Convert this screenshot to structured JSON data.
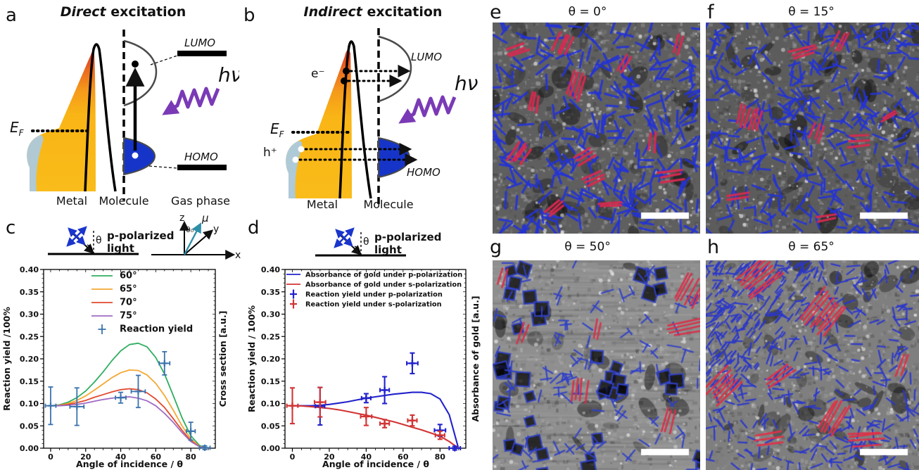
{
  "panels": {
    "a": {
      "letter": "a",
      "title_em": "Direct",
      "title_rest": " excitation",
      "ef": "E",
      "ef_sub": "F",
      "lumo": "LUMO",
      "homo": "HOMO",
      "photon": "hν",
      "metal": "Metal",
      "molecule": "Molecule",
      "gas_phase": "Gas phase"
    },
    "b": {
      "letter": "b",
      "title_em": "Indirect",
      "title_rest": " excitation",
      "electron": "e⁻",
      "hole": "h⁺",
      "ef": "E",
      "ef_sub": "F",
      "lumo": "LUMO",
      "homo": "HOMO",
      "photon": "hν",
      "metal": "Metal",
      "molecule": "Molecule"
    },
    "c": {
      "letter": "c",
      "pol_line1": "p-polarized",
      "pol_line2": "light",
      "theta": "θ",
      "axis_x": "x",
      "axis_y": "y",
      "axis_z": "z",
      "theta0": "θ₀",
      "mu": "μ"
    },
    "d": {
      "letter": "d",
      "pol_line1": "p-polarized",
      "pol_line2": "light",
      "theta": "θ"
    },
    "e": {
      "letter": "e",
      "title": "θ = 0°"
    },
    "f": {
      "letter": "f",
      "title": "θ = 15°"
    },
    "g": {
      "letter": "g",
      "title": "θ = 50°"
    },
    "h": {
      "letter": "h",
      "title": "θ = 65°"
    }
  },
  "colors": {
    "photon_purple": "#7a3ab6",
    "polarization_blue": "#1a35cc",
    "mu_teal": "#2e8fa8",
    "metal_yellow": "#f9b515",
    "metal_red": "#d93025",
    "metal_blue": "#a8cbe8",
    "homo_blue": "#1635c8",
    "scalebar": "#ffffff"
  },
  "chart_data": [
    {
      "id": "c",
      "type": "line+scatter",
      "title": "",
      "xlabel": "Angle of incidence / θ",
      "ylabel": "Reaction yield /100%",
      "ylabel_right": "Cross section [a.u.]",
      "xlim": [
        -4,
        94
      ],
      "ylim": [
        0,
        0.4
      ],
      "grid": false,
      "legend_position": "upper-center",
      "xticks": [
        0,
        20,
        40,
        60,
        80
      ],
      "yticks": [
        0.0,
        0.05,
        0.1,
        0.15,
        0.2,
        0.25,
        0.3,
        0.35,
        0.4
      ],
      "x": [
        0,
        5,
        10,
        15,
        20,
        25,
        30,
        35,
        40,
        45,
        50,
        55,
        60,
        65,
        70,
        75,
        80,
        85,
        90
      ],
      "series": [
        {
          "name": "60°",
          "color": "#2fae60",
          "values": [
            0.095,
            0.097,
            0.103,
            0.113,
            0.128,
            0.148,
            0.171,
            0.196,
            0.218,
            0.232,
            0.235,
            0.227,
            0.203,
            0.166,
            0.118,
            0.068,
            0.028,
            0.006,
            0.0
          ]
        },
        {
          "name": "65°",
          "color": "#f5a733",
          "values": [
            0.095,
            0.096,
            0.1,
            0.107,
            0.117,
            0.13,
            0.144,
            0.158,
            0.169,
            0.175,
            0.174,
            0.164,
            0.145,
            0.118,
            0.085,
            0.05,
            0.021,
            0.004,
            0.0
          ]
        },
        {
          "name": "70°",
          "color": "#e1492f",
          "values": [
            0.095,
            0.0955,
            0.098,
            0.102,
            0.107,
            0.114,
            0.12,
            0.126,
            0.131,
            0.133,
            0.131,
            0.124,
            0.11,
            0.091,
            0.066,
            0.04,
            0.017,
            0.003,
            0.0
          ]
        },
        {
          "name": "75°",
          "color": "#a06bc4",
          "values": [
            0.095,
            0.095,
            0.096,
            0.098,
            0.101,
            0.105,
            0.109,
            0.112,
            0.114,
            0.115,
            0.112,
            0.106,
            0.095,
            0.078,
            0.058,
            0.035,
            0.015,
            0.003,
            0.0
          ]
        }
      ],
      "scatter": [
        {
          "name": "Reaction yield",
          "color": "#3a72ad",
          "points": [
            [
              0,
              0.095,
              3,
              0.042
            ],
            [
              15,
              0.093,
              4,
              0.042
            ],
            [
              40,
              0.113,
              3,
              0.012
            ],
            [
              50,
              0.127,
              4,
              0.036
            ],
            [
              65,
              0.19,
              3,
              0.026
            ],
            [
              80,
              0.038,
              2.5,
              0.02
            ],
            [
              88,
              0.001,
              3,
              0.004
            ]
          ]
        }
      ]
    },
    {
      "id": "d",
      "type": "line+scatter",
      "title": "",
      "xlabel": "Angle of incidence / θ",
      "ylabel": "Reaction yield / 100%",
      "ylabel_right": "Absorbance of gold [a.u.]",
      "xlim": [
        -4,
        94
      ],
      "ylim": [
        0,
        0.4
      ],
      "grid": false,
      "legend_position": "upper-left",
      "xticks": [
        0,
        20,
        40,
        60,
        80
      ],
      "yticks": [
        0.0,
        0.05,
        0.1,
        0.15,
        0.2,
        0.25,
        0.3,
        0.35,
        0.4
      ],
      "x": [
        0,
        5,
        10,
        15,
        20,
        25,
        30,
        35,
        40,
        45,
        50,
        55,
        60,
        65,
        70,
        75,
        80,
        85,
        90
      ],
      "series": [
        {
          "name": "Absorbance of gold under p-polarization",
          "color": "#2222cc",
          "values": [
            0.095,
            0.095,
            0.095,
            0.096,
            0.098,
            0.101,
            0.104,
            0.108,
            0.112,
            0.115,
            0.118,
            0.121,
            0.123,
            0.125,
            0.125,
            0.122,
            0.11,
            0.075,
            0.0
          ]
        },
        {
          "name": "Absorbance of gold under s-polarization",
          "color": "#d23434",
          "values": [
            0.095,
            0.0945,
            0.093,
            0.091,
            0.089,
            0.086,
            0.082,
            0.078,
            0.074,
            0.069,
            0.064,
            0.059,
            0.053,
            0.047,
            0.041,
            0.034,
            0.027,
            0.015,
            0.0
          ]
        }
      ],
      "scatter": [
        {
          "name": "Reaction yield under p-polarization",
          "color": "#2222cc",
          "points": [
            [
              15,
              0.094,
              2.5,
              0.042
            ],
            [
              40,
              0.112,
              2.5,
              0.01
            ],
            [
              50,
              0.13,
              2.5,
              0.03
            ],
            [
              65,
              0.19,
              3,
              0.023
            ],
            [
              80,
              0.04,
              3,
              0.013
            ],
            [
              88,
              0.0,
              3,
              0.004
            ]
          ]
        },
        {
          "name": "Reaction yield under s-polarization",
          "color": "#d23434",
          "points": [
            [
              0,
              0.095,
              3,
              0.04
            ],
            [
              15,
              0.103,
              3,
              0.033
            ],
            [
              40,
              0.071,
              3,
              0.02
            ],
            [
              50,
              0.055,
              2.5,
              0.009
            ],
            [
              65,
              0.062,
              2.5,
              0.012
            ],
            [
              80,
              0.029,
              2.5,
              0.009
            ]
          ]
        }
      ]
    }
  ],
  "micrographs": [
    {
      "id": "e",
      "seed": 7,
      "bg": "#5f5f5f",
      "style": "random",
      "blue_count": 290,
      "rod_len": [
        15,
        26
      ],
      "rod_width": 3,
      "rod_color": "#2433d6",
      "red_color": "#d62a50",
      "scalebar": true,
      "red_clusters": [
        [
          0.12,
          0.13,
          3,
          -20,
          26
        ],
        [
          0.34,
          0.1,
          4,
          -65,
          30
        ],
        [
          0.4,
          0.3,
          4,
          -70,
          34
        ],
        [
          0.2,
          0.38,
          3,
          -80,
          26
        ],
        [
          0.13,
          0.62,
          4,
          -55,
          28
        ],
        [
          0.44,
          0.63,
          3,
          -30,
          28
        ],
        [
          0.49,
          0.74,
          3,
          -25,
          26
        ],
        [
          0.3,
          0.88,
          3,
          -40,
          26
        ],
        [
          0.77,
          0.56,
          2,
          -85,
          26
        ],
        [
          0.86,
          0.73,
          3,
          -8,
          30
        ],
        [
          0.57,
          0.86,
          2,
          -5,
          30
        ],
        [
          0.9,
          0.1,
          2,
          -75,
          24
        ],
        [
          0.63,
          0.2,
          2,
          -60,
          22
        ]
      ]
    },
    {
      "id": "f",
      "seed": 13,
      "bg": "#5c5c5c",
      "style": "random",
      "blue_count": 330,
      "rod_len": [
        13,
        22
      ],
      "rod_width": 2.8,
      "rod_color": "#2433d6",
      "red_color": "#d62a50",
      "scalebar": true,
      "red_clusters": [
        [
          0.2,
          0.45,
          6,
          -75,
          30
        ],
        [
          0.46,
          0.14,
          3,
          -15,
          34
        ],
        [
          0.63,
          0.09,
          3,
          -65,
          26
        ],
        [
          0.52,
          0.52,
          3,
          -70,
          24
        ],
        [
          0.72,
          0.56,
          3,
          -5,
          28
        ],
        [
          0.15,
          0.82,
          2,
          -10,
          30
        ],
        [
          0.56,
          0.92,
          2,
          -10,
          26
        ],
        [
          0.86,
          0.44,
          2,
          -30,
          22
        ]
      ]
    },
    {
      "id": "g",
      "seed": 29,
      "bg": "#8f8f8f",
      "style": "squares",
      "blue_count": 85,
      "rod_len": [
        13,
        20
      ],
      "rod_width": 2.2,
      "rod_color": "#3040c8",
      "red_color": "#d8304a",
      "scalebar": true,
      "square_clusters": [
        [
          0.12,
          0.12,
          5
        ],
        [
          0.2,
          0.3,
          3
        ],
        [
          0.07,
          0.5,
          5
        ],
        [
          0.1,
          0.72,
          4
        ],
        [
          0.16,
          0.92,
          3
        ],
        [
          0.55,
          0.55,
          6
        ],
        [
          0.63,
          0.68,
          3
        ],
        [
          0.76,
          0.08,
          4
        ],
        [
          0.86,
          0.55,
          3
        ],
        [
          0.45,
          0.9,
          3
        ],
        [
          0.3,
          0.95,
          2
        ],
        [
          0.93,
          0.9,
          2
        ]
      ],
      "red_clusters": [
        [
          0.95,
          0.15,
          6,
          -60,
          40
        ],
        [
          0.93,
          0.32,
          4,
          -10,
          44
        ],
        [
          0.15,
          0.35,
          2,
          -70,
          28
        ],
        [
          0.5,
          0.33,
          2,
          -80,
          26
        ],
        [
          0.42,
          0.62,
          4,
          -85,
          28
        ],
        [
          0.85,
          0.76,
          3,
          -75,
          30
        ],
        [
          0.05,
          0.08,
          2,
          -70,
          24
        ]
      ]
    },
    {
      "id": "h",
      "seed": 41,
      "bg": "#7f7f7f",
      "style": "aligned",
      "blue_count": 330,
      "aligned_count": 230,
      "rod_len": [
        10,
        18
      ],
      "rod_width": 2.3,
      "rod_color": "#2a36cc",
      "red_color": "#e03048",
      "scalebar": true,
      "red_clusters": [
        [
          0.25,
          0.08,
          7,
          -40,
          52
        ],
        [
          0.55,
          0.25,
          8,
          -50,
          50
        ],
        [
          0.08,
          0.6,
          6,
          -45,
          44
        ],
        [
          0.35,
          0.55,
          3,
          -35,
          40
        ],
        [
          0.6,
          0.75,
          5,
          -60,
          48
        ],
        [
          0.75,
          0.85,
          4,
          -5,
          44
        ],
        [
          0.3,
          0.85,
          3,
          -10,
          36
        ],
        [
          0.92,
          0.5,
          2,
          -70,
          34
        ]
      ]
    }
  ]
}
